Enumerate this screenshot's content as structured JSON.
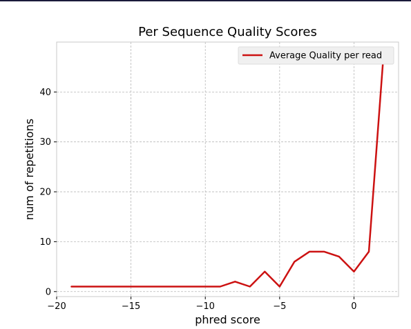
{
  "chart_data": {
    "type": "line",
    "title": "Per Sequence Quality Scores",
    "xlabel": "phred score",
    "ylabel": "num of repetitions",
    "xlim": [
      -20,
      3
    ],
    "ylim": [
      -1,
      50
    ],
    "xticks": [
      -20,
      -15,
      -10,
      -5,
      0
    ],
    "xtick_labels": [
      "−20",
      "−15",
      "−10",
      "−5",
      "0"
    ],
    "yticks": [
      0,
      10,
      20,
      30,
      40
    ],
    "ytick_labels": [
      "0",
      "10",
      "20",
      "30",
      "40"
    ],
    "grid": true,
    "legend_position": "top-right",
    "series": [
      {
        "name": "Average Quality per read",
        "color": "#cc1111",
        "x": [
          -19,
          -18,
          -17,
          -16,
          -15,
          -14,
          -13,
          -12,
          -11,
          -10,
          -9,
          -8,
          -7,
          -6,
          -5,
          -4,
          -3,
          -2,
          -1,
          0,
          1,
          2
        ],
        "y": [
          1,
          1,
          1,
          1,
          1,
          1,
          1,
          1,
          1,
          1,
          1,
          2,
          1,
          4,
          1,
          6,
          8,
          8,
          7,
          4,
          8,
          48
        ]
      }
    ]
  }
}
